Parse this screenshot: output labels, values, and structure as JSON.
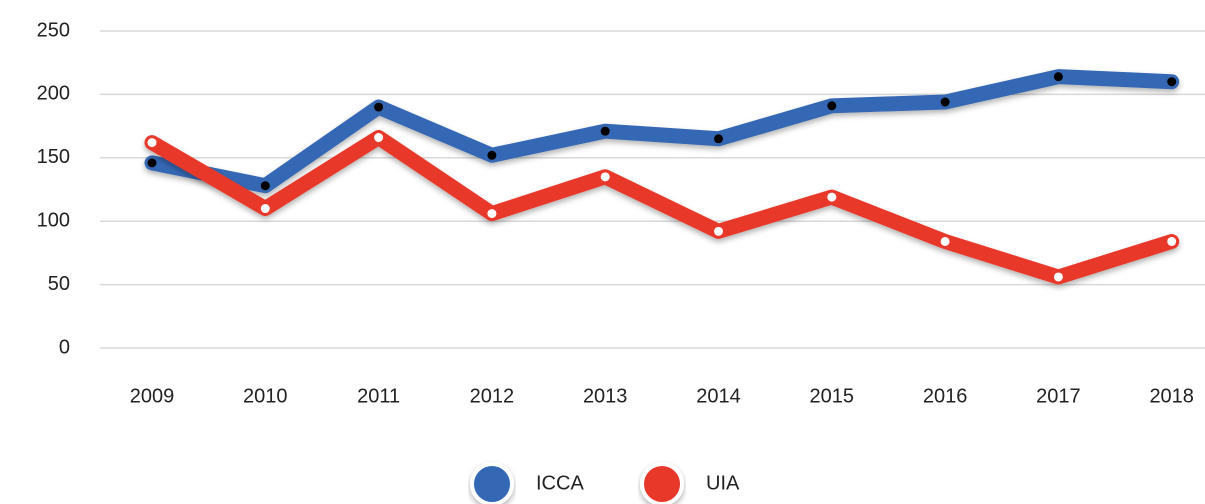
{
  "chart_data": {
    "type": "line",
    "categories": [
      "2009",
      "2010",
      "2011",
      "2012",
      "2013",
      "2014",
      "2015",
      "2016",
      "2017",
      "2018"
    ],
    "series": [
      {
        "name": "ICCA",
        "color": "#3568b4",
        "marker_color": "#000000",
        "values": [
          146,
          128,
          190,
          152,
          171,
          165,
          191,
          194,
          214,
          210
        ]
      },
      {
        "name": "UIA",
        "color": "#e8392a",
        "marker_color": "#ffffff",
        "values": [
          162,
          110,
          166,
          106,
          135,
          92,
          119,
          84,
          56,
          84
        ]
      }
    ],
    "ylim": [
      0,
      250
    ],
    "yticks": [
      0,
      50,
      100,
      150,
      200,
      250
    ],
    "grid": true,
    "legend": "bottom"
  }
}
